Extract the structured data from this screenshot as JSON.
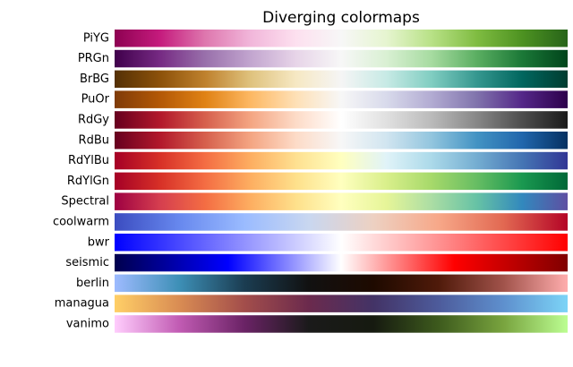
{
  "title": "Diverging colormaps",
  "colormaps": [
    {
      "name": "PiYG",
      "colors": [
        "#8e0152",
        "#c51b7d",
        "#de77ae",
        "#f1b6da",
        "#fde0ef",
        "#f7f7f7",
        "#e6f5d0",
        "#b8e186",
        "#7fbc41",
        "#4d9221",
        "#276419"
      ]
    },
    {
      "name": "PRGn",
      "colors": [
        "#40004b",
        "#762a83",
        "#9970ab",
        "#c2a5cf",
        "#e7d4e8",
        "#f7f7f7",
        "#d9f0d3",
        "#a6dba0",
        "#5aae61",
        "#1b7837",
        "#00441b"
      ]
    },
    {
      "name": "BrBG",
      "colors": [
        "#543005",
        "#8c510a",
        "#bf812d",
        "#dfc27d",
        "#f6e8c3",
        "#f5f5f5",
        "#c7eae5",
        "#80cdc1",
        "#35978f",
        "#01665e",
        "#003c30"
      ]
    },
    {
      "name": "PuOr",
      "colors": [
        "#7f3b08",
        "#b35806",
        "#e08214",
        "#fdb863",
        "#fee0b6",
        "#f7f7f7",
        "#d8daeb",
        "#b2abd2",
        "#8073ac",
        "#542788",
        "#2d004b"
      ]
    },
    {
      "name": "RdGy",
      "colors": [
        "#67001f",
        "#b2182b",
        "#d6604d",
        "#f4a582",
        "#fddbc7",
        "#ffffff",
        "#e0e0e0",
        "#bababa",
        "#878787",
        "#4d4d4d",
        "#1a1a1a"
      ]
    },
    {
      "name": "RdBu",
      "colors": [
        "#67001f",
        "#b2182b",
        "#d6604d",
        "#f4a582",
        "#fddbc7",
        "#f7f7f7",
        "#d1e5f0",
        "#92c5de",
        "#4393c3",
        "#2166ac",
        "#053061"
      ]
    },
    {
      "name": "RdYlBu",
      "colors": [
        "#a50026",
        "#d73027",
        "#f46d43",
        "#fdae61",
        "#fee090",
        "#ffffbf",
        "#e0f3f8",
        "#abd9e9",
        "#74add1",
        "#4575b4",
        "#313695"
      ]
    },
    {
      "name": "RdYlGn",
      "colors": [
        "#a50026",
        "#d73027",
        "#f46d43",
        "#fdae61",
        "#fee08b",
        "#ffffbf",
        "#d9ef8b",
        "#a6d96a",
        "#66bd63",
        "#1a9850",
        "#006837"
      ]
    },
    {
      "name": "Spectral",
      "colors": [
        "#9e0142",
        "#d53e4f",
        "#f46d43",
        "#fdae61",
        "#fee08b",
        "#ffffbf",
        "#e6f598",
        "#abdda4",
        "#66c2a5",
        "#3288bd",
        "#5e4fa2"
      ]
    },
    {
      "name": "coolwarm",
      "colors": [
        "#3b4cc0",
        "#6788ee",
        "#9abbff",
        "#c9d7f0",
        "#edd1c2",
        "#f7a889",
        "#e26952",
        "#b40426"
      ]
    },
    {
      "name": "bwr",
      "colors": [
        "#0000ff",
        "#ffffff",
        "#ff0000"
      ]
    },
    {
      "name": "seismic",
      "colors": [
        "#00004d",
        "#0000ff",
        "#ffffff",
        "#ff0000",
        "#800000"
      ]
    },
    {
      "name": "berlin",
      "colors": [
        "#9ebbff",
        "#3d8fb6",
        "#1b3d52",
        "#111111",
        "#1e0a00",
        "#4f1a0a",
        "#a0524a",
        "#ffadad"
      ]
    },
    {
      "name": "managua",
      "colors": [
        "#ffcf67",
        "#d98c53",
        "#a34e4b",
        "#6b2a4d",
        "#433366",
        "#4d5b9b",
        "#5e8fcd",
        "#7cd4f7"
      ]
    },
    {
      "name": "vanimo",
      "colors": [
        "#ffcdfd",
        "#c15bb3",
        "#6b2366",
        "#1a1a1a",
        "#161a10",
        "#3d5a1d",
        "#78a33e",
        "#bcfe92"
      ]
    }
  ]
}
